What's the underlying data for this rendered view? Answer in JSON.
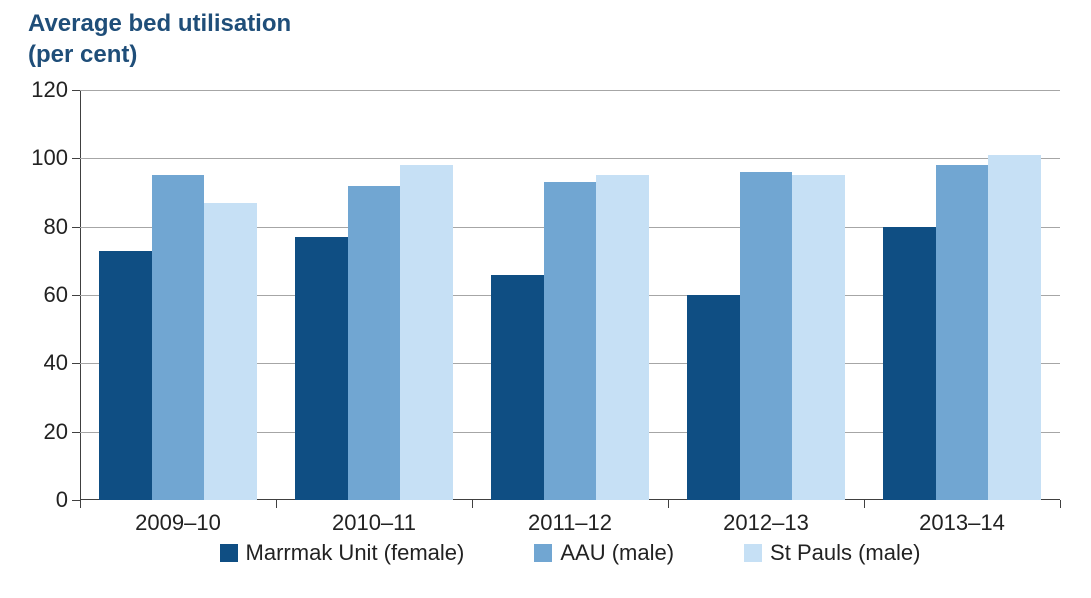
{
  "chart": {
    "type": "bar",
    "title_line1": "Average bed utilisation",
    "title_line2": "(per cent)",
    "title_color": "#1f4e79",
    "title_fontsize": 24,
    "title_fontweight": 700,
    "background_color": "#ffffff",
    "grid_color": "#a6a6a6",
    "axis_color": "#404040",
    "tick_label_color": "#222222",
    "tick_fontsize": 22,
    "ylim": [
      0,
      120
    ],
    "ytick_step": 20,
    "yticks": [
      0,
      20,
      40,
      60,
      80,
      100,
      120
    ],
    "ytick_labels": [
      "0",
      "20",
      "40",
      "60",
      "80",
      "100",
      "120"
    ],
    "categories": [
      "2009–10",
      "2010–11",
      "2011–12",
      "2012–13",
      "2013–14"
    ],
    "series": [
      {
        "name": "Marrmak Unit (female)",
        "color": "#0f4e83",
        "values": [
          73,
          77,
          66,
          60,
          80
        ]
      },
      {
        "name": "AAU (male)",
        "color": "#71a6d2",
        "values": [
          95,
          92,
          93,
          96,
          98
        ]
      },
      {
        "name": "St Pauls (male)",
        "color": "#c6e0f5",
        "values": [
          87,
          98,
          95,
          95,
          101
        ]
      }
    ],
    "bar_width": 0.27,
    "group_gap": 0.19,
    "legend_position": "bottom",
    "plot_aspect_w": 980,
    "plot_aspect_h": 410
  }
}
